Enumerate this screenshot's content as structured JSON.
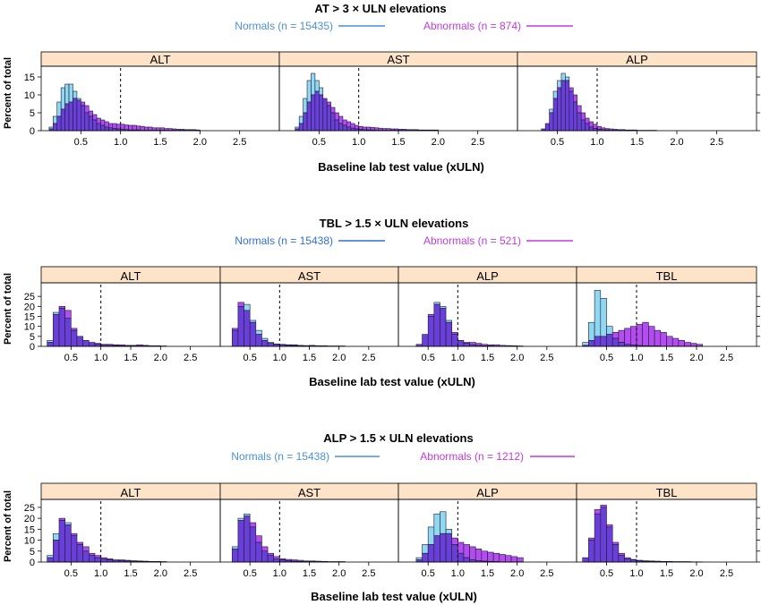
{
  "chart_data": [
    {
      "type": "bar",
      "title": "AT > 3 × ULN elevations",
      "xlabel": "Baseline lab test value (xULN)",
      "ylabel": "Percent of total",
      "xlim": [
        0,
        3
      ],
      "ylim": [
        0,
        17
      ],
      "yticks": [
        0,
        5,
        10,
        15
      ],
      "xticks": [
        0.5,
        1.0,
        1.5,
        2.0,
        2.5
      ],
      "xtick_labels": [
        "0.5",
        "1.0",
        "1.5",
        "2.0",
        "2.5"
      ],
      "reference_line_x": 1.0,
      "legend": {
        "placement": "top",
        "items": [
          {
            "label": "Normals (n = 15435)",
            "color": "#4a90d9"
          },
          {
            "label": "Abnormals (n = 874)",
            "color": "#c03ae0"
          }
        ]
      },
      "bin_width": 0.05,
      "x_start": 0.1,
      "panels": [
        {
          "name": "ALT",
          "series": [
            {
              "name": "Normals",
              "values": [
                1,
                4,
                8,
                12,
                13,
                13,
                11,
                9,
                7,
                5,
                4,
                3,
                2,
                1.5,
                1,
                0.8,
                0.6,
                0.5,
                0.4,
                0.3,
                0.2,
                0.2,
                0.2,
                0.1,
                0.1,
                0.1,
                0.1,
                0.1,
                0.1,
                0.1,
                0.1,
                0.1,
                0.1,
                0.1,
                0.1,
                0.1,
                0.1,
                0.1
              ]
            },
            {
              "name": "Abnormals",
              "values": [
                0.5,
                2,
                4,
                6,
                7.5,
                8,
                9,
                8.5,
                8,
                7,
                5.5,
                4.5,
                3.5,
                3,
                2.5,
                2,
                2,
                1.8,
                1.8,
                1.6,
                1.5,
                1.5,
                1.3,
                1.2,
                1,
                1,
                0.8,
                0.8,
                0.8,
                0.6,
                0.6,
                0.5,
                0.4,
                0.4,
                0.3,
                0.3,
                0.3,
                0.2
              ]
            }
          ]
        },
        {
          "name": "AST",
          "series": [
            {
              "name": "Normals",
              "values": [
                0,
                0,
                1,
                4,
                9,
                14,
                16,
                14,
                12,
                9,
                7,
                5,
                3,
                2,
                1.5,
                1,
                0.7,
                0.5,
                0.4,
                0.3,
                0.2,
                0.2,
                0.1,
                0.1,
                0.1,
                0.1,
                0.1,
                0.1,
                0.1,
                0.1,
                0.1,
                0.1,
                0.1,
                0.1,
                0.1,
                0.1,
                0.1,
                0.1
              ]
            },
            {
              "name": "Abnormals",
              "values": [
                0,
                0,
                0.5,
                2,
                5,
                8,
                10,
                11,
                10,
                9,
                8,
                6.5,
                5,
                4,
                3,
                2.5,
                2,
                1.5,
                1.2,
                1,
                1,
                0.9,
                0.8,
                0.7,
                0.6,
                0.6,
                0.5,
                0.5,
                0.4,
                0.4,
                0.3,
                0.3,
                0.3,
                0.2,
                0.2,
                0.2,
                0.2,
                0.2
              ]
            }
          ]
        },
        {
          "name": "ALP",
          "series": [
            {
              "name": "Normals",
              "values": [
                0,
                0,
                0,
                0,
                0.5,
                2,
                6,
                11,
                14,
                16,
                15,
                11,
                8,
                5,
                3,
                2,
                1,
                0.6,
                0.4,
                0.3,
                0.2,
                0.1,
                0.1,
                0.1,
                0.1,
                0.1,
                0.1,
                0.1,
                0.1,
                0,
                0,
                0,
                0,
                0,
                0,
                0,
                0,
                0
              ]
            },
            {
              "name": "Abnormals",
              "values": [
                0,
                0,
                0,
                0,
                0.5,
                2,
                5,
                9,
                12,
                14,
                14,
                12,
                10,
                7,
                5,
                3.5,
                2.5,
                1.8,
                1.2,
                0.8,
                0.6,
                0.5,
                0.4,
                0.3,
                0.3,
                0.2,
                0.2,
                0.2,
                0.1,
                0.1,
                0.1,
                0.1,
                0.1,
                0,
                0,
                0,
                0,
                0
              ]
            }
          ]
        }
      ]
    },
    {
      "type": "bar",
      "title": "TBL > 1.5 × ULN elevations",
      "xlabel": "Baseline lab test value (xULN)",
      "ylabel": "Percent of total",
      "xlim": [
        0,
        3
      ],
      "ylim": [
        0,
        30
      ],
      "yticks": [
        0,
        5,
        10,
        15,
        20,
        25
      ],
      "xticks": [
        0.5,
        1.0,
        1.5,
        2.0,
        2.5
      ],
      "xtick_labels": [
        "0.5",
        "1.0",
        "1.5",
        "2.0",
        "2.5"
      ],
      "reference_line_x": 1.0,
      "legend": {
        "placement": "top",
        "items": [
          {
            "label": "Normals (n = 15438)",
            "color": "#2f6fe0"
          },
          {
            "label": "Abnormals (n = 521)",
            "color": "#c03ae0"
          }
        ]
      },
      "bin_width": 0.1,
      "x_start": 0.1,
      "panels": [
        {
          "name": "ALT",
          "series": [
            {
              "name": "Normals",
              "values": [
                3,
                17,
                19,
                14,
                8,
                5,
                3,
                2,
                1.2,
                0.8,
                0.5,
                0.4,
                0.3,
                0.3,
                0.2,
                0.2,
                0.2,
                0.1,
                0.1,
                0.1
              ]
            },
            {
              "name": "Abnormals",
              "values": [
                2,
                16,
                20,
                18,
                9,
                5,
                3,
                2,
                1.5,
                1,
                1,
                0.8,
                0.8,
                0.5,
                0.5,
                0.8,
                0.5,
                0.3,
                0.3,
                0.2
              ]
            }
          ]
        },
        {
          "name": "AST",
          "series": [
            {
              "name": "Normals",
              "values": [
                0,
                8,
                20,
                21,
                13,
                8,
                4,
                2,
                1.2,
                0.8,
                0.5,
                0.4,
                0.3,
                0.2,
                0.2,
                0.1,
                0.1,
                0.1,
                0.1,
                0.1
              ]
            },
            {
              "name": "Abnormals",
              "values": [
                0,
                9,
                22,
                18,
                12,
                6,
                3,
                1.5,
                1,
                1,
                0.8,
                0.8,
                0.5,
                0.4,
                0.5,
                0.3,
                0.3,
                0.2,
                0.2,
                0.2
              ]
            }
          ]
        },
        {
          "name": "ALP",
          "series": [
            {
              "name": "Normals",
              "values": [
                0,
                0,
                1,
                6,
                15,
                22,
                20,
                13,
                6,
                3,
                1.5,
                0.8,
                0.5,
                0.3,
                0.2,
                0.1,
                0.1,
                0.1,
                0.1,
                0.1
              ]
            },
            {
              "name": "Abnormals",
              "values": [
                0,
                0,
                1,
                6,
                16,
                21,
                19,
                12,
                7,
                3,
                2,
                2,
                1.5,
                1,
                0.8,
                0.8,
                0.5,
                0.4,
                0.3,
                0.2
              ]
            }
          ]
        },
        {
          "name": "TBL",
          "series": [
            {
              "name": "Normals",
              "values": [
                2,
                12,
                28,
                24,
                10,
                4,
                2,
                1,
                0.6,
                0.4,
                0.3,
                0.2,
                0.2,
                0.1,
                0.1,
                0.1,
                0.1,
                0.1,
                0.1,
                0.1
              ]
            },
            {
              "name": "Abnormals",
              "values": [
                0.5,
                3,
                5,
                5,
                6,
                7,
                8,
                9,
                10,
                11,
                12,
                10,
                8,
                7,
                5,
                4,
                3,
                2,
                1.5,
                1
              ]
            }
          ]
        }
      ]
    },
    {
      "type": "bar",
      "title": "ALP > 1.5 × ULN elevations",
      "xlabel": "Baseline lab test value (xULN)",
      "ylabel": "Percent of total",
      "xlim": [
        0,
        3
      ],
      "ylim": [
        0,
        27
      ],
      "yticks": [
        0,
        5,
        10,
        15,
        20,
        25
      ],
      "xticks": [
        0.5,
        1.0,
        1.5,
        2.0,
        2.5
      ],
      "xtick_labels": [
        "0.5",
        "1.0",
        "1.5",
        "2.0",
        "2.5"
      ],
      "reference_line_x": 1.0,
      "legend": {
        "placement": "top",
        "items": [
          {
            "label": "Normals (n = 15438)",
            "color": "#4a90d9"
          },
          {
            "label": "Abnormals (n = 1212)",
            "color": "#c03ae0"
          }
        ]
      },
      "bin_width": 0.1,
      "x_start": 0.1,
      "panels": [
        {
          "name": "ALT",
          "series": [
            {
              "name": "Normals",
              "values": [
                3,
                13,
                19,
                18,
                12,
                8,
                5,
                3,
                2,
                1.5,
                1,
                0.8,
                0.6,
                0.5,
                0.4,
                0.3,
                0.2,
                0.2,
                0.1,
                0.1
              ]
            },
            {
              "name": "Abnormals",
              "values": [
                2,
                10,
                20,
                17,
                13,
                9,
                7,
                4,
                3,
                2,
                1.5,
                1,
                1,
                0.8,
                0.6,
                0.5,
                0.4,
                0.3,
                0.3,
                0.2
              ]
            }
          ]
        },
        {
          "name": "AST",
          "series": [
            {
              "name": "Normals",
              "values": [
                0,
                7,
                20,
                22,
                16,
                9,
                5,
                3,
                1.5,
                1,
                0.6,
                0.4,
                0.3,
                0.2,
                0.2,
                0.1,
                0.1,
                0.1,
                0.1,
                0.1
              ]
            },
            {
              "name": "Abnormals",
              "values": [
                0,
                6,
                19,
                21,
                18,
                12,
                7,
                4,
                2.5,
                1.5,
                1.2,
                1,
                0.8,
                0.5,
                0.5,
                0.4,
                0.3,
                0.2,
                0.2,
                0.2
              ]
            }
          ]
        },
        {
          "name": "ALP",
          "series": [
            {
              "name": "Normals",
              "values": [
                0,
                0,
                2,
                8,
                16,
                22,
                23,
                15,
                8,
                4,
                2,
                1,
                0.6,
                0.4,
                0.3,
                0.2,
                0.1,
                0.1,
                0.1,
                0.1
              ]
            },
            {
              "name": "Abnormals",
              "values": [
                0,
                0,
                1,
                4,
                8,
                12,
                13,
                13,
                11,
                9,
                8,
                7,
                6,
                5,
                4.5,
                4,
                3.5,
                3,
                2.5,
                2
              ]
            }
          ]
        },
        {
          "name": "TBL",
          "series": [
            {
              "name": "Normals",
              "values": [
                2,
                10,
                22,
                25,
                16,
                8,
                3,
                1.5,
                1,
                0.5,
                0.3,
                0.2,
                0.2,
                0.1,
                0.1,
                0.1,
                0.1,
                0.1,
                0.1,
                0.1
              ]
            },
            {
              "name": "Abnormals",
              "values": [
                2,
                11,
                24,
                26,
                17,
                9,
                4,
                2,
                1.2,
                0.8,
                0.6,
                0.5,
                0.4,
                0.3,
                0.3,
                0.2,
                0.2,
                0.2,
                0.1,
                0.1
              ]
            }
          ]
        }
      ]
    }
  ],
  "style": {
    "strip_bg": "#fde3c8",
    "normals_fill": "#8fd8f0",
    "abnormals_fill": "#b44cf0",
    "overlap_fill": "#6a3fd8",
    "bar_stroke": "#1a1a3a"
  }
}
